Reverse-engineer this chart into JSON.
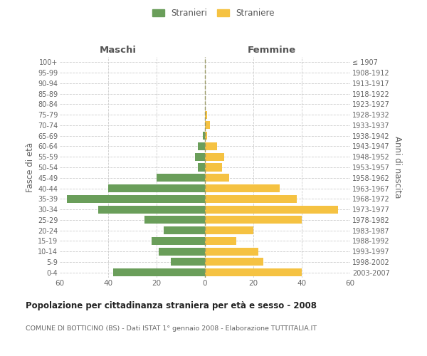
{
  "age_groups": [
    "0-4",
    "5-9",
    "10-14",
    "15-19",
    "20-24",
    "25-29",
    "30-34",
    "35-39",
    "40-44",
    "45-49",
    "50-54",
    "55-59",
    "60-64",
    "65-69",
    "70-74",
    "75-79",
    "80-84",
    "85-89",
    "90-94",
    "95-99",
    "100+"
  ],
  "birth_years": [
    "2003-2007",
    "1998-2002",
    "1993-1997",
    "1988-1992",
    "1983-1987",
    "1978-1982",
    "1973-1977",
    "1968-1972",
    "1963-1967",
    "1958-1962",
    "1953-1957",
    "1948-1952",
    "1943-1947",
    "1938-1942",
    "1933-1937",
    "1928-1932",
    "1923-1927",
    "1918-1922",
    "1913-1917",
    "1908-1912",
    "≤ 1907"
  ],
  "maschi": [
    38,
    14,
    19,
    22,
    17,
    25,
    44,
    57,
    40,
    20,
    3,
    4,
    3,
    1,
    0,
    0,
    0,
    0,
    0,
    0,
    0
  ],
  "femmine": [
    40,
    24,
    22,
    13,
    20,
    40,
    55,
    38,
    31,
    10,
    7,
    8,
    5,
    1,
    2,
    1,
    0,
    0,
    0,
    0,
    0
  ],
  "color_maschi": "#6a9e5a",
  "color_femmine": "#f5c242",
  "title": "Popolazione per cittadinanza straniera per età e sesso - 2008",
  "subtitle": "COMUNE DI BOTTICINO (BS) - Dati ISTAT 1° gennaio 2008 - Elaborazione TUTTITALIA.IT",
  "ylabel_left": "Fasce di età",
  "ylabel_right": "Anni di nascita",
  "xlabel_left": "Maschi",
  "xlabel_right": "Femmine",
  "legend_maschi": "Stranieri",
  "legend_femmine": "Straniere",
  "xlim": 60,
  "background_color": "#ffffff",
  "grid_color": "#cccccc"
}
